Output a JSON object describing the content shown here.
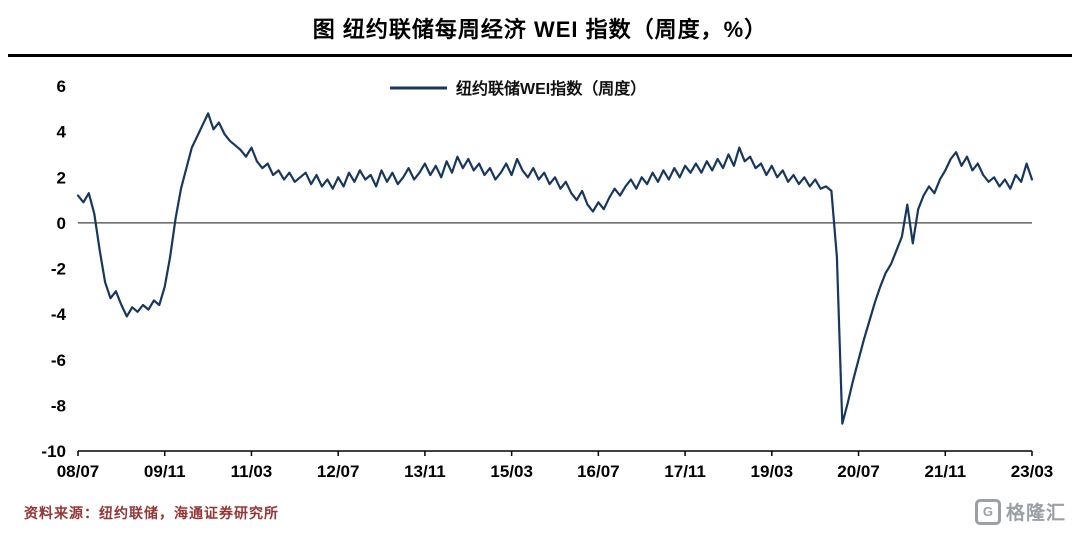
{
  "header": {
    "title": "图  纽约联储每周经济 WEI 指数（周度，%）"
  },
  "footer": {
    "source": "资料来源：纽约联储，海通证券研究所",
    "logo_text": "格隆汇",
    "logo_glyph": "G"
  },
  "chart_data": {
    "type": "line",
    "title": "图 纽约联储每周经济 WEI 指数（周度，%）",
    "legend": "纽约联储WEI指数（周度）",
    "line_color": "#17375E",
    "axis_color": "#000000",
    "zero_line_color": "#444444",
    "ylim": [
      -10,
      6
    ],
    "yticks": [
      6,
      4,
      2,
      0,
      -2,
      -4,
      -6,
      -8,
      -10
    ],
    "xtick_labels": [
      "08/07",
      "09/11",
      "11/03",
      "12/07",
      "13/11",
      "15/03",
      "16/07",
      "17/11",
      "19/03",
      "20/07",
      "21/11",
      "23/03"
    ],
    "xtick_indices": [
      0,
      16,
      32,
      48,
      64,
      80,
      96,
      112,
      128,
      144,
      160,
      176
    ],
    "x_start": "2008-07",
    "x_frequency": "monthly",
    "ylabel": "",
    "xlabel": "",
    "grid": false,
    "legend_position": "top-center",
    "values": [
      1.2,
      0.9,
      1.3,
      0.4,
      -1.2,
      -2.6,
      -3.3,
      -3.0,
      -3.6,
      -4.1,
      -3.7,
      -3.9,
      -3.6,
      -3.8,
      -3.4,
      -3.6,
      -2.8,
      -1.5,
      0.2,
      1.5,
      2.4,
      3.3,
      3.8,
      4.3,
      4.8,
      4.1,
      4.4,
      3.9,
      3.6,
      3.4,
      3.2,
      2.9,
      3.3,
      2.7,
      2.4,
      2.6,
      2.1,
      2.3,
      1.9,
      2.2,
      1.8,
      2.0,
      2.2,
      1.7,
      2.1,
      1.6,
      1.9,
      1.5,
      2.0,
      1.6,
      2.2,
      1.8,
      2.3,
      1.9,
      2.1,
      1.6,
      2.3,
      1.8,
      2.2,
      1.7,
      2.0,
      2.4,
      1.9,
      2.2,
      2.6,
      2.1,
      2.5,
      2.0,
      2.7,
      2.2,
      2.9,
      2.4,
      2.8,
      2.3,
      2.6,
      2.1,
      2.4,
      1.9,
      2.2,
      2.6,
      2.1,
      2.8,
      2.3,
      2.0,
      2.4,
      1.9,
      2.2,
      1.7,
      2.0,
      1.5,
      1.8,
      1.3,
      1.0,
      1.4,
      0.8,
      0.5,
      0.9,
      0.6,
      1.1,
      1.5,
      1.2,
      1.6,
      1.9,
      1.5,
      2.0,
      1.7,
      2.2,
      1.8,
      2.3,
      1.9,
      2.4,
      2.0,
      2.5,
      2.2,
      2.6,
      2.2,
      2.7,
      2.3,
      2.8,
      2.4,
      3.0,
      2.5,
      3.3,
      2.7,
      2.9,
      2.4,
      2.6,
      2.1,
      2.5,
      2.0,
      2.3,
      1.8,
      2.1,
      1.7,
      2.0,
      1.6,
      1.9,
      1.5,
      1.6,
      1.4,
      -1.5,
      -8.8,
      -7.9,
      -6.9,
      -6.0,
      -5.1,
      -4.3,
      -3.5,
      -2.8,
      -2.2,
      -1.8,
      -1.2,
      -0.6,
      0.8,
      -0.9,
      0.6,
      1.2,
      1.6,
      1.3,
      1.9,
      2.3,
      2.8,
      3.1,
      2.5,
      2.9,
      2.3,
      2.6,
      2.1,
      1.8,
      2.0,
      1.6,
      1.9,
      1.5,
      2.1,
      1.8,
      2.6,
      1.9
    ]
  }
}
